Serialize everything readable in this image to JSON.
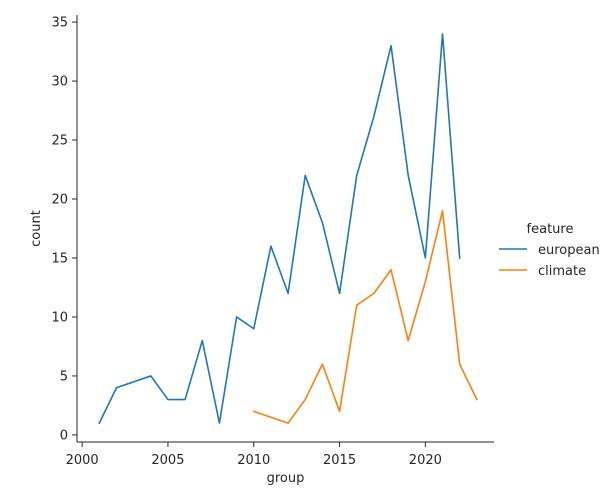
{
  "chart_data": {
    "type": "line",
    "xlabel": "group",
    "ylabel": "count",
    "xlim": [
      1999.7,
      2024.0
    ],
    "ylim": [
      -0.6,
      35.6
    ],
    "xticks": [
      2000,
      2005,
      2010,
      2015,
      2020
    ],
    "yticks": [
      0,
      5,
      10,
      15,
      20,
      25,
      30,
      35
    ],
    "grid": false,
    "legend": {
      "title": "feature",
      "placement": "right"
    },
    "series": [
      {
        "name": "european",
        "color": "#1f77b4",
        "x": [
          2001,
          2002,
          2004,
          2005,
          2006,
          2007,
          2008,
          2009,
          2010,
          2011,
          2012,
          2013,
          2014,
          2015,
          2016,
          2017,
          2018,
          2019,
          2020,
          2021,
          2022
        ],
        "y": [
          1,
          4,
          5,
          3,
          3,
          8,
          1,
          10,
          9,
          16,
          12,
          22,
          18,
          12,
          22,
          27,
          33,
          22,
          15,
          34,
          15
        ]
      },
      {
        "name": "climate",
        "color": "#ff7f0e",
        "x": [
          2010,
          2012,
          2013,
          2014,
          2015,
          2016,
          2017,
          2018,
          2019,
          2020,
          2021,
          2022,
          2023
        ],
        "y": [
          2,
          1,
          3,
          6,
          2,
          11,
          12,
          14,
          8,
          13,
          19,
          6,
          3
        ]
      }
    ]
  }
}
